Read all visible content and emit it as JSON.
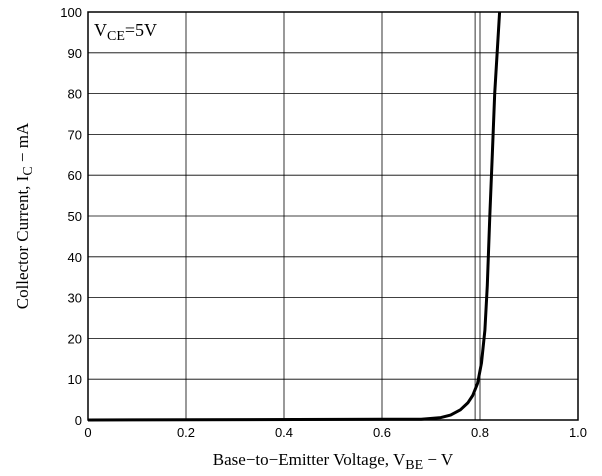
{
  "chart_data": {
    "type": "line",
    "title": "",
    "xlabel": {
      "main": "Base−to−Emitter Voltage, V",
      "sub": "BE",
      "suffix": " − V"
    },
    "ylabel": {
      "main": "Collector Current, I",
      "sub": "C",
      "suffix": " − mA"
    },
    "xlim": [
      0,
      1.0
    ],
    "ylim": [
      0,
      100
    ],
    "x_ticks": [
      0,
      0.2,
      0.4,
      0.6,
      0.8,
      1.0
    ],
    "x_tick_labels": [
      "0",
      "0.2",
      "0.4",
      "0.6",
      "0.8",
      "1.0"
    ],
    "y_ticks": [
      0,
      10,
      20,
      30,
      40,
      50,
      60,
      70,
      80,
      90,
      100
    ],
    "y_tick_labels": [
      "0",
      "10",
      "20",
      "30",
      "40",
      "50",
      "60",
      "70",
      "80",
      "90",
      "100"
    ],
    "extra_vlines": [
      0.79
    ],
    "grid": true,
    "legend": "none",
    "annotation": {
      "main": "V",
      "sub": "CE",
      "suffix": "=5V"
    },
    "series": [
      {
        "color": "#000000",
        "x": [
          0,
          0.68,
          0.72,
          0.74,
          0.76,
          0.775,
          0.785,
          0.795,
          0.803,
          0.81,
          0.815,
          0.82,
          0.825,
          0.83,
          0.84
        ],
        "y": [
          0,
          0.2,
          0.6,
          1.2,
          2.5,
          4.2,
          6.0,
          9.0,
          14.0,
          22.0,
          33.0,
          50.0,
          65.0,
          80.0,
          100.0
        ]
      }
    ]
  }
}
